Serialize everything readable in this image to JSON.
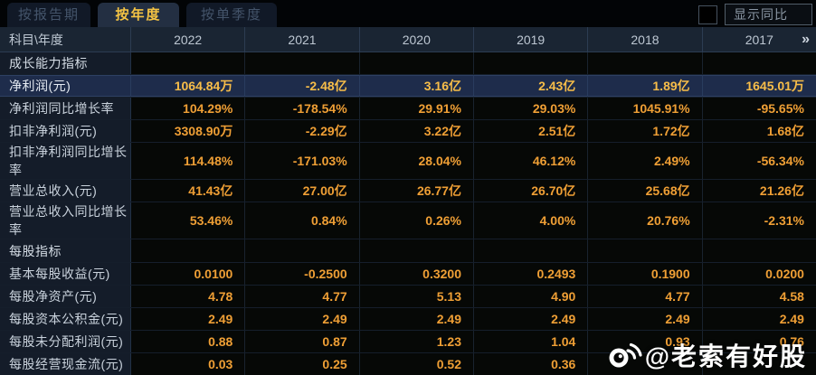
{
  "tabs": [
    {
      "label": "按报告期",
      "active": false
    },
    {
      "label": "按年度",
      "active": true
    },
    {
      "label": "按单季度",
      "active": false
    }
  ],
  "controls": {
    "show_yoy_label": "显示同比",
    "checkbox_checked": false
  },
  "table": {
    "corner_header": "科目\\年度",
    "year_columns": [
      "2022",
      "2021",
      "2020",
      "2019",
      "2018",
      "2017"
    ],
    "more_years_label": "»",
    "rows": [
      {
        "type": "section",
        "label": "成长能力指标"
      },
      {
        "type": "data",
        "label": "净利润(元)",
        "highlight": true,
        "values": [
          "1064.84万",
          "-2.48亿",
          "3.16亿",
          "2.43亿",
          "1.89亿",
          "1645.01万"
        ]
      },
      {
        "type": "data",
        "label": "净利润同比增长率",
        "values": [
          "104.29%",
          "-178.54%",
          "29.91%",
          "29.03%",
          "1045.91%",
          "-95.65%"
        ]
      },
      {
        "type": "data",
        "label": "扣非净利润(元)",
        "values": [
          "3308.90万",
          "-2.29亿",
          "3.22亿",
          "2.51亿",
          "1.72亿",
          "1.68亿"
        ]
      },
      {
        "type": "data",
        "label": "扣非净利润同比增长率",
        "values": [
          "114.48%",
          "-171.03%",
          "28.04%",
          "46.12%",
          "2.49%",
          "-56.34%"
        ]
      },
      {
        "type": "data",
        "label": "营业总收入(元)",
        "values": [
          "41.43亿",
          "27.00亿",
          "26.77亿",
          "26.70亿",
          "25.68亿",
          "21.26亿"
        ]
      },
      {
        "type": "data",
        "label": "营业总收入同比增长率",
        "values": [
          "53.46%",
          "0.84%",
          "0.26%",
          "4.00%",
          "20.76%",
          "-2.31%"
        ]
      },
      {
        "type": "section",
        "label": "每股指标"
      },
      {
        "type": "data",
        "label": "基本每股收益(元)",
        "values": [
          "0.0100",
          "-0.2500",
          "0.3200",
          "0.2493",
          "0.1900",
          "0.0200"
        ]
      },
      {
        "type": "data",
        "label": "每股净资产(元)",
        "values": [
          "4.78",
          "4.77",
          "5.13",
          "4.90",
          "4.77",
          "4.58"
        ]
      },
      {
        "type": "data",
        "label": "每股资本公积金(元)",
        "values": [
          "2.49",
          "2.49",
          "2.49",
          "2.49",
          "2.49",
          "2.49"
        ]
      },
      {
        "type": "data",
        "label": "每股未分配利润(元)",
        "values": [
          "0.88",
          "0.87",
          "1.23",
          "1.04",
          "0.93",
          "0.76"
        ]
      },
      {
        "type": "data",
        "label": "每股经营现金流(元)",
        "values": [
          "0.03",
          "0.25",
          "0.52",
          "0.36",
          "",
          ""
        ]
      }
    ]
  },
  "watermark": {
    "icon": "weibo-icon",
    "text": "@老索有好股"
  },
  "colors": {
    "value_gold": "#ef9f35",
    "highlight_row_bg": "#1e2c4b",
    "active_tab_text": "#f5c444",
    "header_bg": "#1a2533"
  }
}
